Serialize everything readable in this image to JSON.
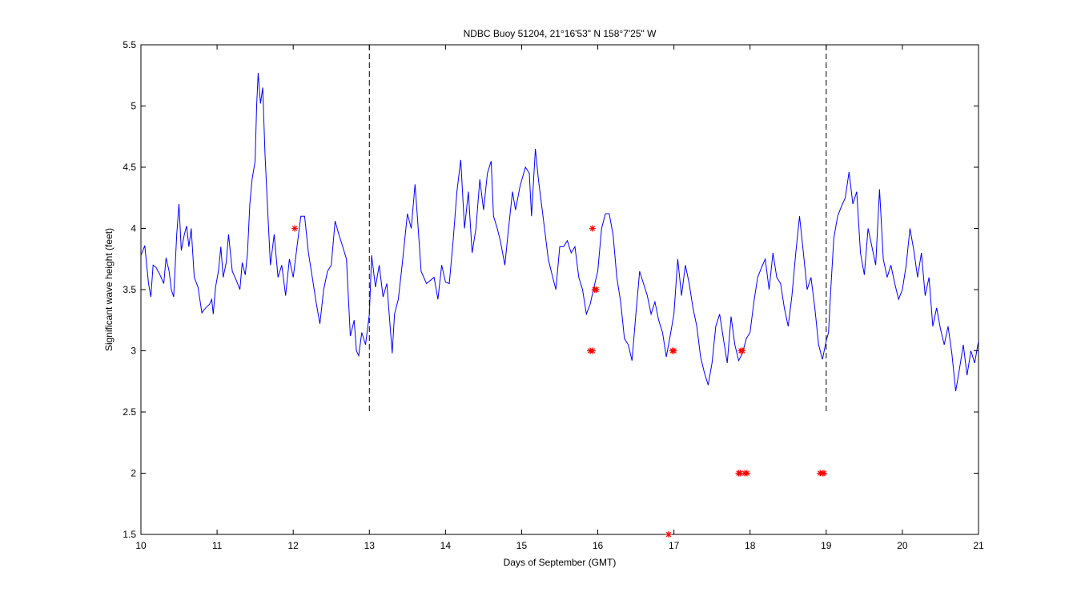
{
  "chart_data": {
    "type": "line",
    "title": "NDBC Buoy 51204, 21°16'53\" N 158°7'25\" W",
    "xlabel": "Days of September (GMT)",
    "ylabel": "Significant wave height (feet)",
    "xlim": [
      10,
      21
    ],
    "ylim": [
      1.5,
      5.5
    ],
    "xticks": [
      "10",
      "11",
      "12",
      "13",
      "14",
      "15",
      "16",
      "17",
      "18",
      "19",
      "20",
      "21"
    ],
    "yticks": [
      "1.5",
      "2",
      "2.5",
      "3",
      "3.5",
      "4",
      "4.5",
      "5",
      "5.5"
    ],
    "grid": false,
    "legend": "none",
    "colors": {
      "line": "#0000ff",
      "markers": "#ff0000",
      "vlines": "#000000"
    },
    "vlines": [
      {
        "x": 13,
        "y_from": 2.5,
        "y_to": 5.5,
        "style": "dashed"
      },
      {
        "x": 19,
        "y_from": 2.5,
        "y_to": 5.5,
        "style": "dashed"
      }
    ],
    "series": [
      {
        "type": "line",
        "values": [
          [
            10.0,
            3.78
          ],
          [
            10.05,
            3.86
          ],
          [
            10.1,
            3.55
          ],
          [
            10.13,
            3.44
          ],
          [
            10.16,
            3.7
          ],
          [
            10.2,
            3.68
          ],
          [
            10.25,
            3.62
          ],
          [
            10.3,
            3.55
          ],
          [
            10.33,
            3.76
          ],
          [
            10.37,
            3.65
          ],
          [
            10.4,
            3.5
          ],
          [
            10.43,
            3.44
          ],
          [
            10.47,
            3.95
          ],
          [
            10.5,
            4.2
          ],
          [
            10.53,
            3.82
          ],
          [
            10.57,
            3.95
          ],
          [
            10.6,
            4.02
          ],
          [
            10.63,
            3.85
          ],
          [
            10.66,
            4.0
          ],
          [
            10.7,
            3.6
          ],
          [
            10.75,
            3.52
          ],
          [
            10.8,
            3.31
          ],
          [
            10.85,
            3.35
          ],
          [
            10.9,
            3.38
          ],
          [
            10.93,
            3.42
          ],
          [
            10.95,
            3.3
          ],
          [
            10.98,
            3.52
          ],
          [
            11.02,
            3.66
          ],
          [
            11.05,
            3.85
          ],
          [
            11.08,
            3.6
          ],
          [
            11.12,
            3.72
          ],
          [
            11.15,
            3.95
          ],
          [
            11.2,
            3.65
          ],
          [
            11.25,
            3.58
          ],
          [
            11.3,
            3.5
          ],
          [
            11.33,
            3.72
          ],
          [
            11.37,
            3.62
          ],
          [
            11.4,
            3.8
          ],
          [
            11.43,
            4.2
          ],
          [
            11.46,
            4.4
          ],
          [
            11.5,
            4.55
          ],
          [
            11.52,
            5.0
          ],
          [
            11.54,
            5.27
          ],
          [
            11.57,
            5.02
          ],
          [
            11.6,
            5.15
          ],
          [
            11.63,
            4.6
          ],
          [
            11.66,
            4.2
          ],
          [
            11.7,
            3.7
          ],
          [
            11.75,
            3.95
          ],
          [
            11.8,
            3.6
          ],
          [
            11.85,
            3.7
          ],
          [
            11.9,
            3.45
          ],
          [
            11.95,
            3.75
          ],
          [
            12.0,
            3.6
          ],
          [
            12.05,
            3.85
          ],
          [
            12.1,
            4.1
          ],
          [
            12.15,
            4.1
          ],
          [
            12.2,
            3.8
          ],
          [
            12.25,
            3.6
          ],
          [
            12.3,
            3.4
          ],
          [
            12.35,
            3.22
          ],
          [
            12.4,
            3.5
          ],
          [
            12.45,
            3.65
          ],
          [
            12.5,
            3.7
          ],
          [
            12.55,
            4.06
          ],
          [
            12.6,
            3.95
          ],
          [
            12.65,
            3.85
          ],
          [
            12.7,
            3.75
          ],
          [
            12.75,
            3.12
          ],
          [
            12.8,
            3.25
          ],
          [
            12.83,
            3.0
          ],
          [
            12.86,
            2.96
          ],
          [
            12.9,
            3.15
          ],
          [
            12.95,
            3.05
          ],
          [
            13.0,
            3.3
          ],
          [
            13.03,
            3.78
          ],
          [
            13.08,
            3.52
          ],
          [
            13.13,
            3.7
          ],
          [
            13.18,
            3.44
          ],
          [
            13.23,
            3.55
          ],
          [
            13.3,
            2.98
          ],
          [
            13.33,
            3.3
          ],
          [
            13.38,
            3.42
          ],
          [
            13.43,
            3.7
          ],
          [
            13.5,
            4.12
          ],
          [
            13.55,
            4.0
          ],
          [
            13.6,
            4.36
          ],
          [
            13.63,
            4.1
          ],
          [
            13.68,
            3.65
          ],
          [
            13.75,
            3.55
          ],
          [
            13.85,
            3.6
          ],
          [
            13.9,
            3.42
          ],
          [
            13.95,
            3.7
          ],
          [
            14.0,
            3.56
          ],
          [
            14.05,
            3.55
          ],
          [
            14.1,
            3.9
          ],
          [
            14.15,
            4.3
          ],
          [
            14.2,
            4.56
          ],
          [
            14.25,
            4.0
          ],
          [
            14.3,
            4.3
          ],
          [
            14.35,
            3.8
          ],
          [
            14.4,
            4.0
          ],
          [
            14.45,
            4.4
          ],
          [
            14.5,
            4.15
          ],
          [
            14.55,
            4.45
          ],
          [
            14.6,
            4.55
          ],
          [
            14.63,
            4.1
          ],
          [
            14.68,
            4.0
          ],
          [
            14.72,
            3.9
          ],
          [
            14.78,
            3.7
          ],
          [
            14.82,
            3.95
          ],
          [
            14.88,
            4.3
          ],
          [
            14.92,
            4.15
          ],
          [
            14.98,
            4.35
          ],
          [
            15.05,
            4.5
          ],
          [
            15.1,
            4.45
          ],
          [
            15.13,
            4.1
          ],
          [
            15.18,
            4.65
          ],
          [
            15.22,
            4.4
          ],
          [
            15.3,
            4.0
          ],
          [
            15.35,
            3.75
          ],
          [
            15.4,
            3.62
          ],
          [
            15.45,
            3.5
          ],
          [
            15.5,
            3.85
          ],
          [
            15.55,
            3.85
          ],
          [
            15.6,
            3.9
          ],
          [
            15.65,
            3.8
          ],
          [
            15.7,
            3.85
          ],
          [
            15.75,
            3.6
          ],
          [
            15.8,
            3.5
          ],
          [
            15.85,
            3.3
          ],
          [
            15.9,
            3.38
          ],
          [
            15.95,
            3.52
          ],
          [
            16.0,
            3.65
          ],
          [
            16.05,
            4.0
          ],
          [
            16.1,
            4.12
          ],
          [
            16.15,
            4.12
          ],
          [
            16.2,
            3.95
          ],
          [
            16.25,
            3.6
          ],
          [
            16.3,
            3.4
          ],
          [
            16.35,
            3.1
          ],
          [
            16.4,
            3.05
          ],
          [
            16.45,
            2.92
          ],
          [
            16.5,
            3.3
          ],
          [
            16.55,
            3.65
          ],
          [
            16.6,
            3.55
          ],
          [
            16.65,
            3.45
          ],
          [
            16.7,
            3.3
          ],
          [
            16.75,
            3.4
          ],
          [
            16.8,
            3.25
          ],
          [
            16.85,
            3.15
          ],
          [
            16.9,
            2.95
          ],
          [
            16.95,
            3.12
          ],
          [
            17.0,
            3.3
          ],
          [
            17.05,
            3.75
          ],
          [
            17.1,
            3.45
          ],
          [
            17.15,
            3.7
          ],
          [
            17.2,
            3.55
          ],
          [
            17.25,
            3.35
          ],
          [
            17.3,
            3.2
          ],
          [
            17.35,
            2.95
          ],
          [
            17.4,
            2.82
          ],
          [
            17.45,
            2.72
          ],
          [
            17.5,
            2.9
          ],
          [
            17.55,
            3.2
          ],
          [
            17.6,
            3.3
          ],
          [
            17.65,
            3.1
          ],
          [
            17.7,
            2.9
          ],
          [
            17.75,
            3.28
          ],
          [
            17.8,
            3.05
          ],
          [
            17.85,
            2.92
          ],
          [
            17.9,
            2.98
          ],
          [
            17.95,
            3.1
          ],
          [
            18.0,
            3.15
          ],
          [
            18.05,
            3.4
          ],
          [
            18.1,
            3.6
          ],
          [
            18.15,
            3.68
          ],
          [
            18.2,
            3.75
          ],
          [
            18.25,
            3.5
          ],
          [
            18.3,
            3.8
          ],
          [
            18.35,
            3.6
          ],
          [
            18.4,
            3.55
          ],
          [
            18.45,
            3.35
          ],
          [
            18.5,
            3.2
          ],
          [
            18.55,
            3.45
          ],
          [
            18.6,
            3.8
          ],
          [
            18.65,
            4.1
          ],
          [
            18.7,
            3.8
          ],
          [
            18.75,
            3.5
          ],
          [
            18.8,
            3.6
          ],
          [
            18.85,
            3.35
          ],
          [
            18.9,
            3.05
          ],
          [
            18.95,
            2.93
          ],
          [
            19.0,
            3.08
          ],
          [
            19.03,
            3.15
          ],
          [
            19.06,
            3.5
          ],
          [
            19.1,
            3.92
          ],
          [
            19.15,
            4.1
          ],
          [
            19.2,
            4.18
          ],
          [
            19.25,
            4.25
          ],
          [
            19.3,
            4.46
          ],
          [
            19.35,
            4.2
          ],
          [
            19.4,
            4.3
          ],
          [
            19.45,
            3.8
          ],
          [
            19.5,
            3.62
          ],
          [
            19.55,
            4.0
          ],
          [
            19.6,
            3.85
          ],
          [
            19.65,
            3.7
          ],
          [
            19.7,
            4.32
          ],
          [
            19.75,
            3.75
          ],
          [
            19.8,
            3.6
          ],
          [
            19.85,
            3.7
          ],
          [
            19.9,
            3.55
          ],
          [
            19.95,
            3.42
          ],
          [
            20.0,
            3.5
          ],
          [
            20.05,
            3.7
          ],
          [
            20.1,
            4.0
          ],
          [
            20.15,
            3.82
          ],
          [
            20.2,
            3.6
          ],
          [
            20.25,
            3.8
          ],
          [
            20.3,
            3.45
          ],
          [
            20.35,
            3.6
          ],
          [
            20.4,
            3.2
          ],
          [
            20.45,
            3.35
          ],
          [
            20.5,
            3.18
          ],
          [
            20.55,
            3.05
          ],
          [
            20.6,
            3.2
          ],
          [
            20.65,
            2.98
          ],
          [
            20.7,
            2.67
          ],
          [
            20.75,
            2.85
          ],
          [
            20.8,
            3.05
          ],
          [
            20.85,
            2.8
          ],
          [
            20.9,
            3.0
          ],
          [
            20.95,
            2.9
          ],
          [
            21.0,
            3.08
          ]
        ]
      },
      {
        "type": "scatter",
        "marker": "asterisk",
        "values": [
          [
            12.02,
            4.0
          ],
          [
            15.93,
            4.0
          ],
          [
            15.96,
            3.5
          ],
          [
            15.98,
            3.5
          ],
          [
            15.9,
            3.0
          ],
          [
            15.93,
            3.0
          ],
          [
            16.98,
            3.0
          ],
          [
            17.0,
            3.0
          ],
          [
            17.88,
            3.0
          ],
          [
            17.9,
            3.0
          ],
          [
            16.93,
            1.5
          ],
          [
            17.85,
            2.0
          ],
          [
            17.87,
            2.0
          ],
          [
            17.93,
            2.0
          ],
          [
            17.96,
            2.0
          ],
          [
            18.92,
            2.0
          ],
          [
            18.95,
            2.0
          ],
          [
            18.97,
            2.0
          ]
        ]
      }
    ]
  }
}
